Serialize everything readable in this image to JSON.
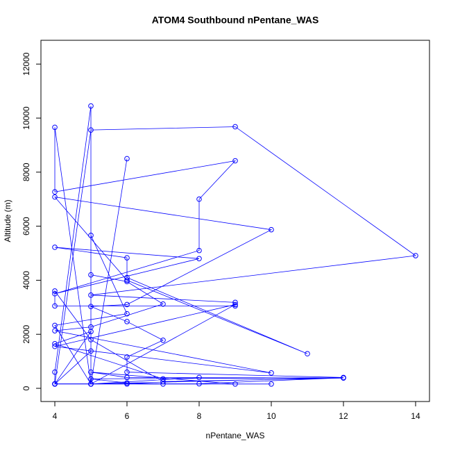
{
  "chart_data": {
    "type": "line",
    "title": "ATOM4 Southbound nPentane_WAS",
    "x_label": "nPentane_WAS",
    "y_label": "Altitude (m)",
    "color": "#0000ff",
    "markers": true,
    "x": [
      4,
      4,
      5,
      5,
      6,
      5,
      4,
      4,
      9,
      8,
      8,
      4,
      8,
      4,
      6,
      6,
      11,
      6,
      4,
      10,
      6,
      5,
      6,
      7,
      6,
      6,
      12,
      5,
      9,
      4,
      10,
      4,
      5,
      7,
      6,
      5,
      5,
      4,
      5,
      9,
      14,
      5,
      9,
      9,
      4,
      4,
      5,
      7,
      12,
      6,
      5,
      9,
      6,
      10,
      4,
      5,
      4,
      7,
      8,
      5,
      4,
      6,
      5,
      5,
      8,
      12,
      5,
      6,
      7,
      4
    ],
    "y": [
      160,
      600,
      10450,
      160,
      8500,
      160,
      9660,
      7270,
      8420,
      7000,
      5100,
      3500,
      4800,
      5220,
      4830,
      4100,
      1280,
      4000,
      7080,
      5870,
      3100,
      3030,
      2470,
      1780,
      1160,
      600,
      400,
      160,
      3100,
      1550,
      570,
      2130,
      2270,
      3120,
      3950,
      4200,
      1380,
      160,
      9560,
      9680,
      4910,
      3450,
      3180,
      3050,
      3050,
      3600,
      1800,
      250,
      380,
      400,
      600,
      160,
      160,
      160,
      160,
      2100,
      1650,
      350,
      400,
      160,
      2330,
      2760,
      5660,
      160,
      170,
      390,
      350,
      200,
      160,
      170
    ],
    "xlim": [
      3.615,
      14.385
    ],
    "ylim": [
      -488,
      12880
    ],
    "xticks": [
      4,
      6,
      8,
      10,
      12,
      14
    ],
    "yticks": [
      0,
      2000,
      4000,
      6000,
      8000,
      10000,
      12000
    ]
  }
}
